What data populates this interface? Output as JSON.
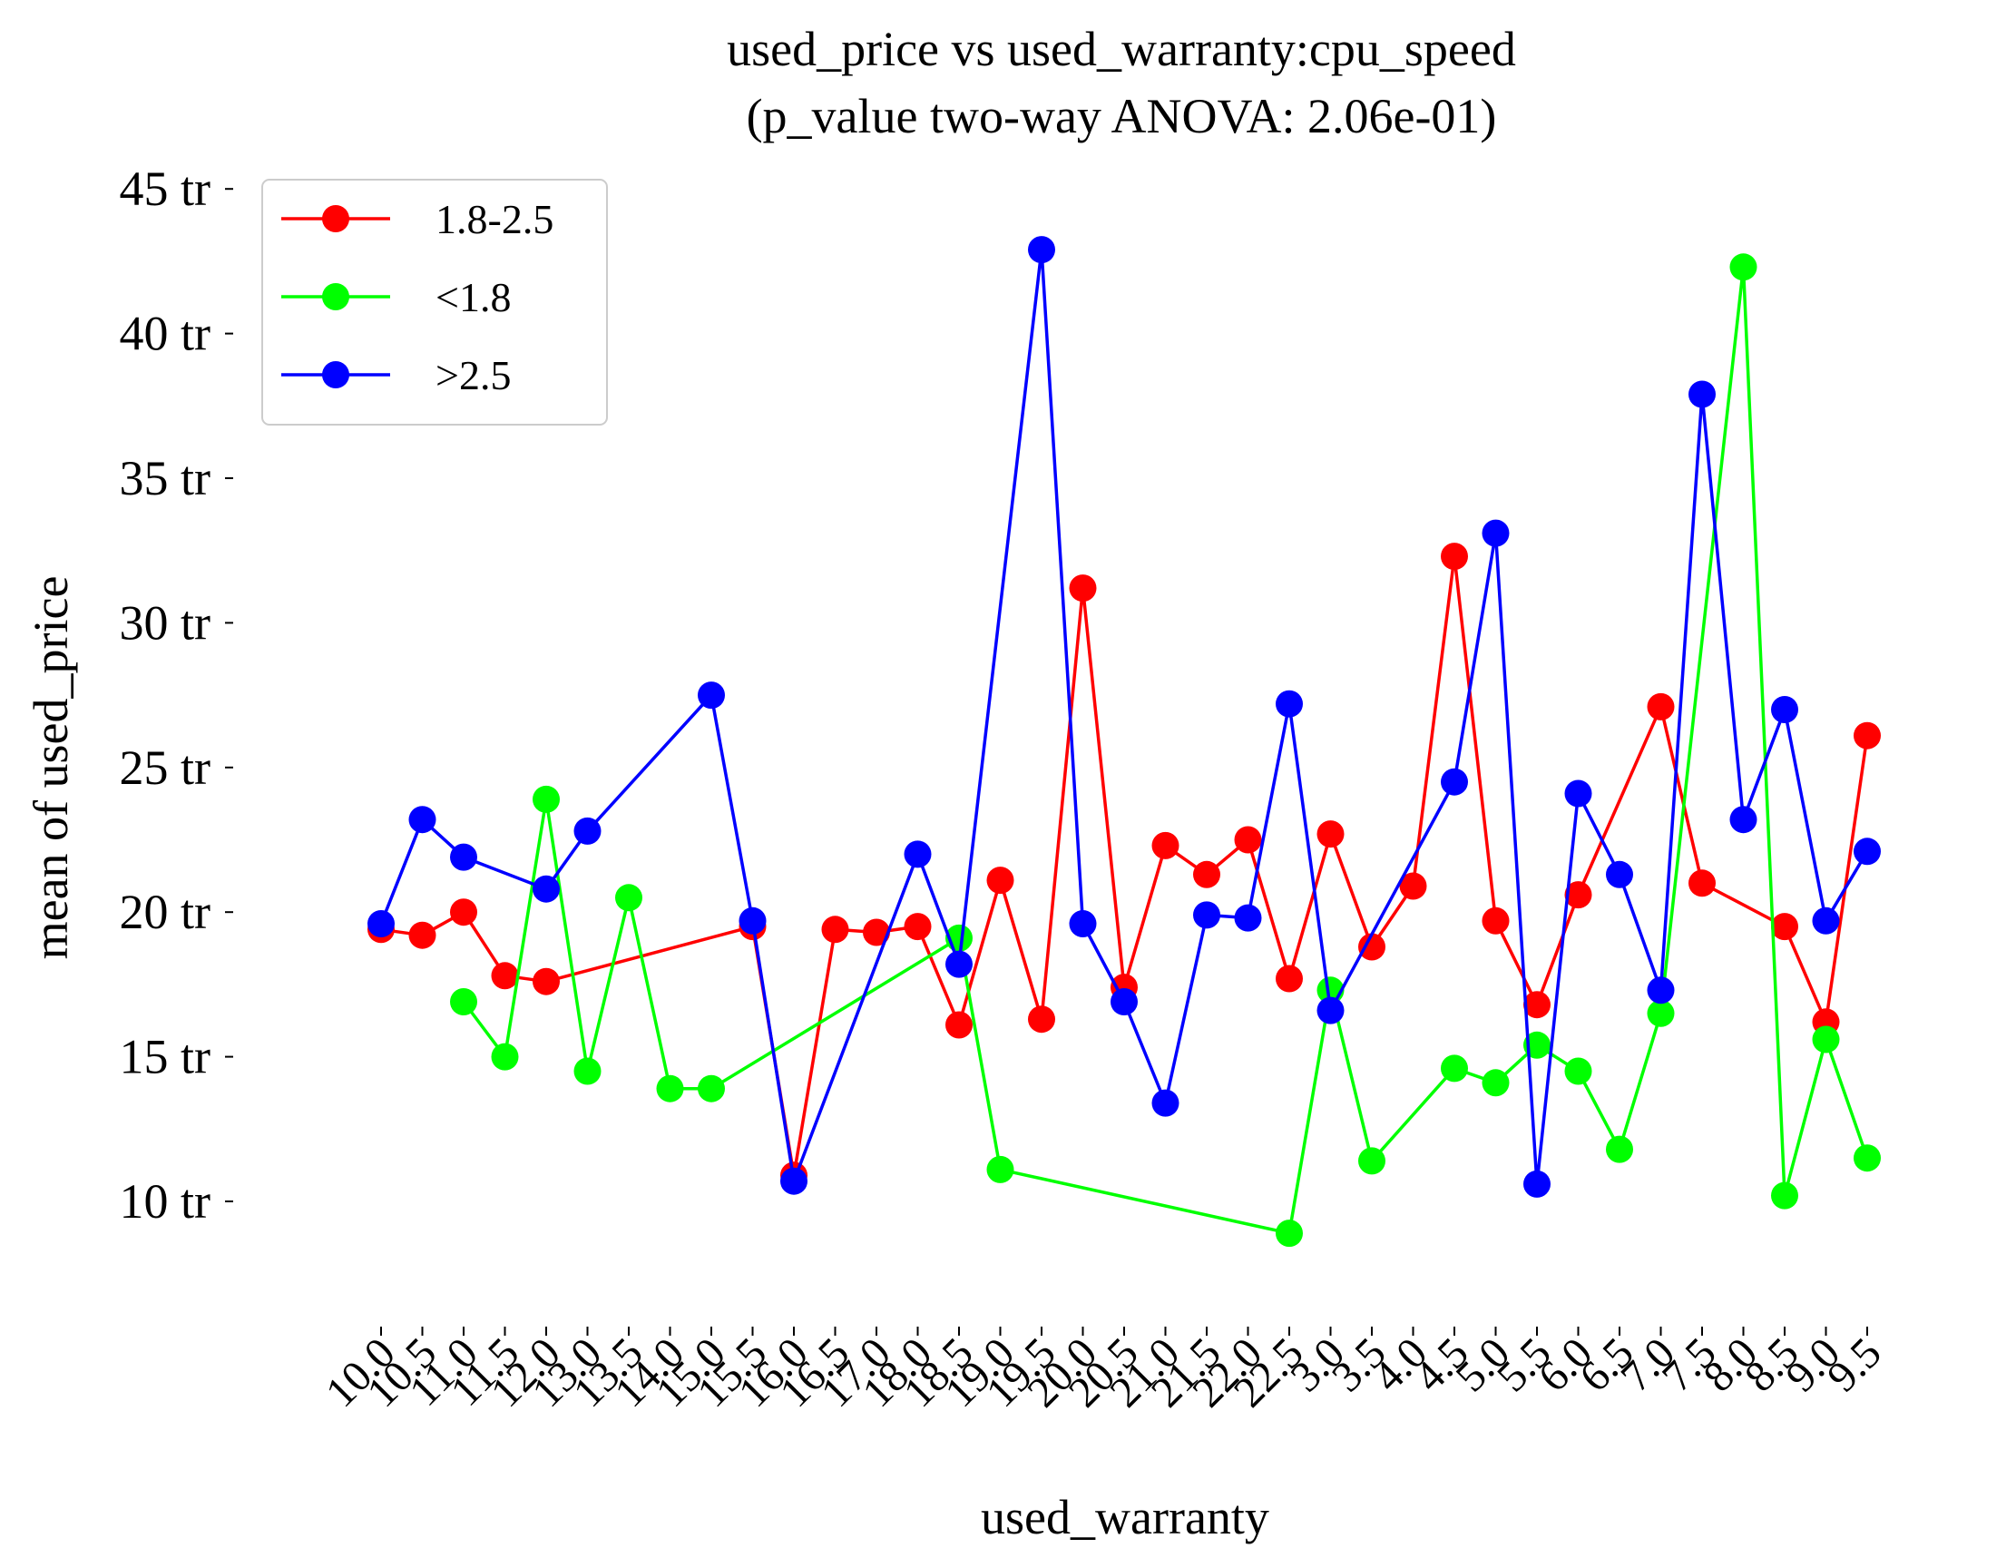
{
  "chart_data": {
    "type": "line",
    "title": "used_price vs used_warranty:cpu_speed",
    "subtitle": "(p_value two-way ANOVA: 2.06e-01)",
    "xlabel": "used_warranty",
    "ylabel": "mean of used_price",
    "ylim": [
      5,
      45
    ],
    "yticks": [
      10,
      15,
      20,
      25,
      30,
      35,
      40,
      45
    ],
    "ytick_labels": [
      "10 tr",
      "15 tr",
      "20 tr",
      "25 tr",
      "30 tr",
      "35 tr",
      "40 tr",
      "45 tr"
    ],
    "categories": [
      "10.0",
      "10.5",
      "11.0",
      "11.5",
      "12.0",
      "13.0",
      "13.5",
      "14.0",
      "15.0",
      "15.5",
      "16.0",
      "16.5",
      "17.0",
      "18.0",
      "18.5",
      "19.0",
      "19.5",
      "20.0",
      "20.5",
      "21.0",
      "21.5",
      "22.0",
      "22.5",
      "3.0",
      "3.5",
      "4.0",
      "4.5",
      "5.0",
      "5.5",
      "6.0",
      "6.5",
      "7.0",
      "7.5",
      "8.0",
      "8.5",
      "9.0",
      "9.5"
    ],
    "xtick_labels": [
      "10.0",
      "10.5",
      "11.0",
      "11.5",
      "12.0",
      "13.0",
      "13.5",
      "14.0",
      "15.0",
      "15.5",
      "16.0",
      "16.5",
      "17.0",
      "18.0",
      "18.5",
      "19.0",
      "19.5",
      "20.0",
      "20.5",
      "21.0",
      "21.5",
      "22.0",
      "22.5",
      "3.0",
      "3.5",
      "4.0",
      "4.5",
      "5.0",
      "5.5",
      "6.0",
      "6.5",
      "7.0",
      "7.5",
      "8.0",
      "8.5",
      "9.0",
      "9.5"
    ],
    "grid": false,
    "legend_position": "top-left",
    "series": [
      {
        "name": "1.8-2.5",
        "color": "#ff0000",
        "values": [
          19.4,
          19.2,
          20.0,
          17.8,
          17.6,
          null,
          null,
          null,
          null,
          19.5,
          10.9,
          19.4,
          19.3,
          19.5,
          16.1,
          21.1,
          16.3,
          31.2,
          17.4,
          22.3,
          21.3,
          22.5,
          17.7,
          22.7,
          18.8,
          20.9,
          32.3,
          19.7,
          16.8,
          20.6,
          null,
          27.1,
          21.0,
          null,
          19.5,
          16.2,
          26.1
        ]
      },
      {
        "name": "<1.8",
        "color": "#00ff00",
        "values": [
          null,
          null,
          16.9,
          15.0,
          23.9,
          14.5,
          20.5,
          13.9,
          13.9,
          null,
          null,
          null,
          null,
          null,
          19.1,
          11.1,
          null,
          null,
          null,
          null,
          null,
          null,
          8.9,
          17.3,
          11.4,
          null,
          14.6,
          14.1,
          15.4,
          14.5,
          11.8,
          16.5,
          null,
          42.3,
          10.2,
          15.6,
          11.5
        ]
      },
      {
        "name": ">2.5",
        "color": "#0000ff",
        "values": [
          19.6,
          23.2,
          21.9,
          null,
          20.8,
          22.8,
          null,
          null,
          27.5,
          19.7,
          10.7,
          null,
          null,
          22.0,
          18.2,
          null,
          42.9,
          19.6,
          16.9,
          13.4,
          19.9,
          19.8,
          27.2,
          16.6,
          null,
          null,
          24.5,
          33.1,
          10.6,
          24.1,
          21.3,
          17.3,
          37.9,
          23.2,
          27.0,
          19.7,
          22.1
        ]
      }
    ]
  }
}
